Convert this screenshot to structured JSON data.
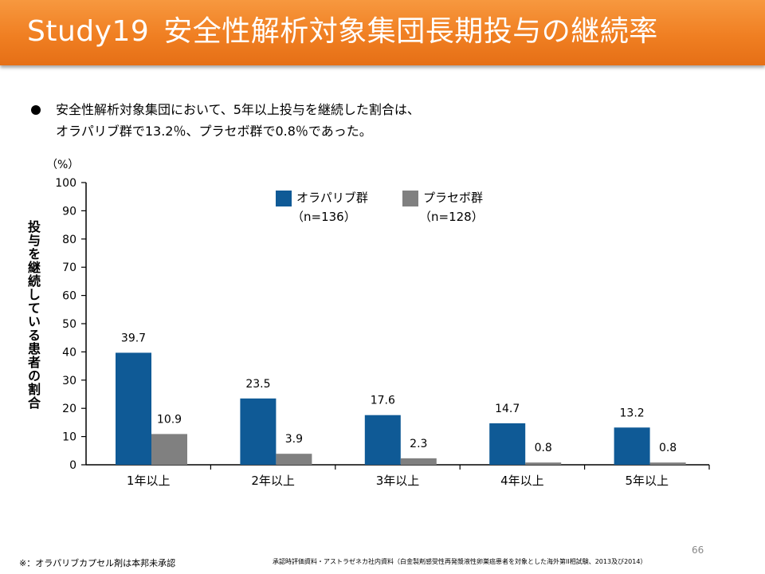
{
  "slide": {
    "title_id": "Study19",
    "title": "安全性解析対象集団長期投与の継続率",
    "bullet_lines": [
      "安全性解析対象集団において、5年以上投与を継続した割合は、",
      "オラパリブ群で13.2％、プラセボ群で0.8％であった。"
    ],
    "page_number": "66",
    "footnote_left": "※：オラパリブカプセル剤は本邦未承認",
    "footnote_right": "承認時評価資料・アストラゼネカ社内資料（白金製剤感受性再発漿液性卵巣癌患者を対象とした海外第II相試験、2013及び2014）"
  },
  "colors": {
    "title_bar": "#f07f22",
    "olaparib": "#0f5a96",
    "placebo": "#808080"
  },
  "chart_data": {
    "type": "bar",
    "categories": [
      "1年以上",
      "2年以上",
      "3年以上",
      "4年以上",
      "5年以上"
    ],
    "series": [
      {
        "name": "オラパリブ群",
        "sub": "（n=136）",
        "color": "#0f5a96",
        "values": [
          39.7,
          23.5,
          17.6,
          14.7,
          13.2
        ]
      },
      {
        "name": "プラセボ群",
        "sub": "（n=128）",
        "color": "#808080",
        "values": [
          10.9,
          3.9,
          2.3,
          0.8,
          0.8
        ]
      }
    ],
    "ylabel": "投与を継続している患者の割合",
    "yunit": "（%）",
    "ylim": [
      0,
      100
    ],
    "yticks": [
      0,
      10,
      20,
      30,
      40,
      50,
      60,
      70,
      80,
      90,
      100
    ],
    "data_labels": true,
    "grid": false,
    "legend_position": "top"
  }
}
